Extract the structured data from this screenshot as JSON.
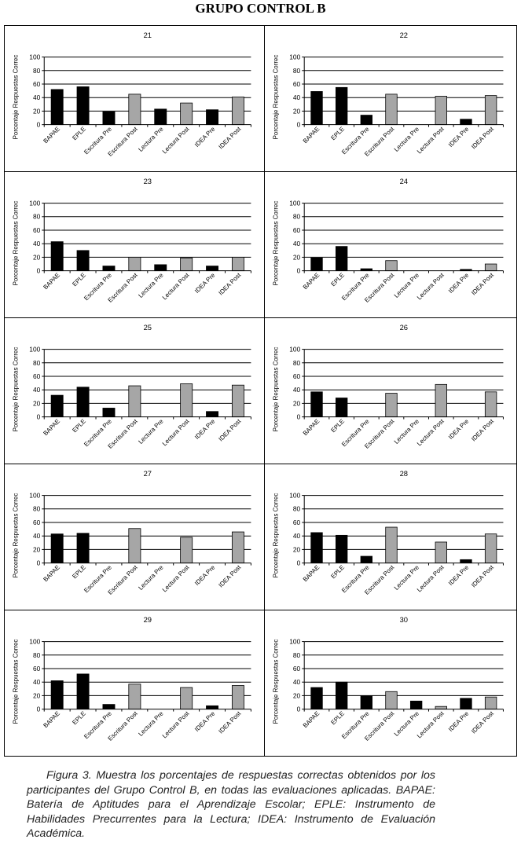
{
  "page": {
    "title": "GRUPO CONTROL B",
    "caption": "Figura 3. Muestra los porcentajes de respuestas correctas obtenidos por los participantes del Grupo Control B, en todas las evaluaciones aplicadas. BAPAE: Batería de Aptitudes para el Aprendizaje Escolar; EPLE: Instrumento de Habilidades Precurrentes para la Lectura; IDEA: Instrumento de Evaluación Académica."
  },
  "colors": {
    "pre": "#000000",
    "post": "#a6a6a6",
    "axis": "#000000"
  },
  "chart_data": [
    {
      "type": "bar",
      "title": "21",
      "ylabel": "Porcentaje Respuestas Correc",
      "ylim": [
        0,
        100
      ],
      "yticks": [
        0,
        20,
        40,
        60,
        80,
        100
      ],
      "grid": true,
      "categories": [
        "BAPAE",
        "EPLE",
        "Escritura Pre",
        "Escritura Post",
        "Lectura Pre",
        "Lectura Post",
        "IDEA Pre",
        "IDEA Post"
      ],
      "values": [
        52,
        56,
        19,
        45,
        23,
        32,
        22,
        41
      ]
    },
    {
      "type": "bar",
      "title": "22",
      "ylabel": "Porcentaje Respuestas Correc",
      "ylim": [
        0,
        100
      ],
      "yticks": [
        0,
        20,
        40,
        60,
        80,
        100
      ],
      "grid": true,
      "categories": [
        "BAPAE",
        "EPLE",
        "Escritura Pre",
        "Escritura Post",
        "Lectura Pre",
        "Lectura Post",
        "IDEA Pre",
        "IDEA Post"
      ],
      "values": [
        49,
        55,
        14,
        45,
        0,
        42,
        8,
        43
      ]
    },
    {
      "type": "bar",
      "title": "23",
      "ylabel": "Porcentaje Respuestas Correc",
      "ylim": [
        0,
        100
      ],
      "yticks": [
        0,
        20,
        40,
        60,
        80,
        100
      ],
      "grid": true,
      "categories": [
        "BAPAE",
        "EPLE",
        "Escritura Pre",
        "Escritura Post",
        "Lectura Pre",
        "Lectura Post",
        "IDEA Pre",
        "IDEA Post"
      ],
      "values": [
        43,
        30,
        7,
        20,
        9,
        19,
        7,
        20
      ]
    },
    {
      "type": "bar",
      "title": "24",
      "ylabel": "Porcentaje Respuestas Correc",
      "ylim": [
        0,
        100
      ],
      "yticks": [
        0,
        20,
        40,
        60,
        80,
        100
      ],
      "grid": true,
      "categories": [
        "BAPAE",
        "EPLE",
        "Escritura Pre",
        "Escritura Post",
        "Lectura Pre",
        "Lectura Post",
        "IDEA Pre",
        "IDEA Post"
      ],
      "values": [
        19,
        36,
        3,
        15,
        0,
        0,
        2,
        10
      ]
    },
    {
      "type": "bar",
      "title": "25",
      "ylabel": "Porcentaje Respuestas Correc",
      "ylim": [
        0,
        100
      ],
      "yticks": [
        0,
        20,
        40,
        60,
        80,
        100
      ],
      "grid": true,
      "categories": [
        "BAPAE",
        "EPLE",
        "Escritura Pre",
        "Escritura Post",
        "Lectura Pre",
        "Lectura Post",
        "IDEA Pre",
        "IDEA Post"
      ],
      "values": [
        32,
        44,
        13,
        46,
        0,
        49,
        8,
        47
      ]
    },
    {
      "type": "bar",
      "title": "26",
      "ylabel": "Porcentaje Respuestas Correc",
      "ylim": [
        0,
        100
      ],
      "yticks": [
        0,
        20,
        40,
        60,
        80,
        100
      ],
      "grid": true,
      "categories": [
        "BAPAE",
        "EPLE",
        "Escritura Pre",
        "Escritura Post",
        "Lectura Pre",
        "Lectura Post",
        "IDEA Pre",
        "IDEA Post"
      ],
      "values": [
        37,
        28,
        0,
        35,
        0,
        48,
        0,
        37
      ]
    },
    {
      "type": "bar",
      "title": "27",
      "ylabel": "Porcentaje Respuestas Correc",
      "ylim": [
        0,
        100
      ],
      "yticks": [
        0,
        20,
        40,
        60,
        80,
        100
      ],
      "grid": true,
      "categories": [
        "BAPAE",
        "EPLE",
        "Escritura Pre",
        "Escritura Post",
        "Lectura Pre",
        "Lectura Post",
        "IDEA Pre",
        "IDEA Post"
      ],
      "values": [
        43,
        44,
        0,
        51,
        0,
        38,
        0,
        46
      ]
    },
    {
      "type": "bar",
      "title": "28",
      "ylabel": "Porcentaje Respuestas Correc",
      "ylim": [
        0,
        100
      ],
      "yticks": [
        0,
        20,
        40,
        60,
        80,
        100
      ],
      "grid": true,
      "categories": [
        "BAPAE",
        "EPLE",
        "Escritura Pre",
        "Escritura Post",
        "Lectura Pre",
        "Lectura Post",
        "IDEA Pre",
        "IDEA Post"
      ],
      "values": [
        45,
        41,
        10,
        53,
        0,
        31,
        5,
        43
      ]
    },
    {
      "type": "bar",
      "title": "29",
      "ylabel": "Porcentaje Respuestas Correc",
      "ylim": [
        0,
        100
      ],
      "yticks": [
        0,
        20,
        40,
        60,
        80,
        100
      ],
      "grid": true,
      "categories": [
        "BAPAE",
        "EPLE",
        "Escritura Pre",
        "Escritura Post",
        "Lectura Pre",
        "Lectura Post",
        "IDEA Pre",
        "IDEA Post"
      ],
      "values": [
        42,
        52,
        7,
        37,
        0,
        32,
        5,
        35
      ]
    },
    {
      "type": "bar",
      "title": "30",
      "ylabel": "Porcentaje Respuestas Correc",
      "ylim": [
        0,
        100
      ],
      "yticks": [
        0,
        20,
        40,
        60,
        80,
        100
      ],
      "grid": true,
      "categories": [
        "BAPAE",
        "EPLE",
        "Escritura Pre",
        "Escritura Post",
        "Lectura Pre",
        "Lectura Post",
        "IDEA Pre",
        "IDEA Post"
      ],
      "values": [
        32,
        40,
        20,
        26,
        12,
        4,
        16,
        18
      ]
    }
  ]
}
